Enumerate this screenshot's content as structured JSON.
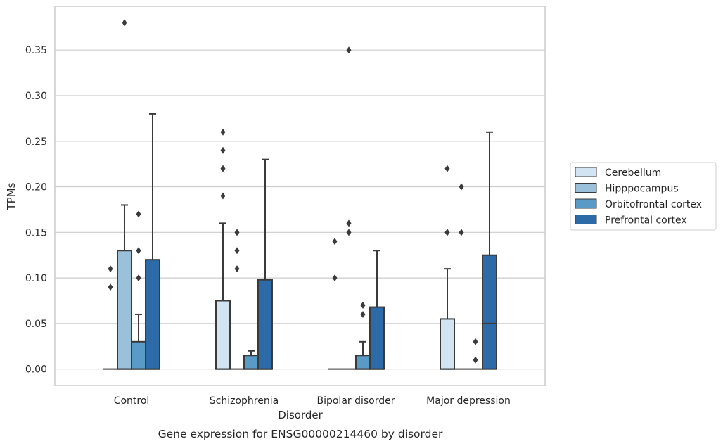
{
  "chart_data": {
    "type": "box",
    "title": "",
    "caption": "Gene expression for ENSG00000214460 by disorder",
    "xlabel": "Disorder",
    "ylabel": "TPMs",
    "ylim": [
      -0.018,
      0.398
    ],
    "yticks": [
      "0.00",
      "0.05",
      "0.10",
      "0.15",
      "0.20",
      "0.25",
      "0.30",
      "0.35"
    ],
    "grid": true,
    "legend_position": "right",
    "categories": [
      "Control",
      "Schizophrenia",
      "Bipolar disorder",
      "Major depression"
    ],
    "series": [
      {
        "name": "Cerebellum",
        "color": "#d2e3f2",
        "boxes": [
          {
            "q1": 0,
            "median": 0,
            "q3": 0,
            "whisker_low": 0,
            "whisker_high": 0,
            "outliers": [
              0.09,
              0.11
            ]
          },
          {
            "q1": 0,
            "median": 0,
            "q3": 0.075,
            "whisker_low": 0,
            "whisker_high": 0.16,
            "outliers": [
              0.19,
              0.22,
              0.24,
              0.26
            ]
          },
          {
            "q1": 0,
            "median": 0,
            "q3": 0,
            "whisker_low": 0,
            "whisker_high": 0,
            "outliers": [
              0.1,
              0.14
            ]
          },
          {
            "q1": 0,
            "median": 0,
            "q3": 0.055,
            "whisker_low": 0,
            "whisker_high": 0.11,
            "outliers": [
              0.15,
              0.15,
              0.22
            ]
          }
        ]
      },
      {
        "name": "Hipppocampus",
        "color": "#9ac0da",
        "boxes": [
          {
            "q1": 0,
            "median": 0,
            "q3": 0.13,
            "whisker_low": 0,
            "whisker_high": 0.18,
            "outliers": [
              0.38
            ]
          },
          {
            "q1": 0,
            "median": 0,
            "q3": 0,
            "whisker_low": 0,
            "whisker_high": 0,
            "outliers": [
              0.11,
              0.13,
              0.15
            ]
          },
          {
            "q1": 0,
            "median": 0,
            "q3": 0,
            "whisker_low": 0,
            "whisker_high": 0,
            "outliers": [
              0.15,
              0.16,
              0.35
            ]
          },
          {
            "q1": 0,
            "median": 0,
            "q3": 0,
            "whisker_low": 0,
            "whisker_high": 0,
            "outliers": [
              0.15,
              0.2
            ]
          }
        ]
      },
      {
        "name": "Orbitofrontal cortex",
        "color": "#5a9ac6",
        "boxes": [
          {
            "q1": 0,
            "median": 0,
            "q3": 0.03,
            "whisker_low": 0,
            "whisker_high": 0.06,
            "outliers": [
              0.1,
              0.13,
              0.17
            ]
          },
          {
            "q1": 0,
            "median": 0,
            "q3": 0.015,
            "whisker_low": 0,
            "whisker_high": 0.02,
            "outliers": []
          },
          {
            "q1": 0,
            "median": 0,
            "q3": 0.015,
            "whisker_low": 0,
            "whisker_high": 0.03,
            "outliers": [
              0.06,
              0.07
            ]
          },
          {
            "q1": 0,
            "median": 0,
            "q3": 0,
            "whisker_low": 0,
            "whisker_high": 0,
            "outliers": [
              0.01,
              0.03
            ]
          }
        ]
      },
      {
        "name": "Prefrontal cortex",
        "color": "#2c6aa8",
        "boxes": [
          {
            "q1": 0,
            "median": 0,
            "q3": 0.12,
            "whisker_low": 0,
            "whisker_high": 0.28,
            "outliers": []
          },
          {
            "q1": 0,
            "median": 0,
            "q3": 0.098,
            "whisker_low": 0,
            "whisker_high": 0.23,
            "outliers": []
          },
          {
            "q1": 0,
            "median": 0,
            "q3": 0.068,
            "whisker_low": 0,
            "whisker_high": 0.13,
            "outliers": []
          },
          {
            "q1": 0,
            "median": 0.05,
            "q3": 0.125,
            "whisker_low": 0,
            "whisker_high": 0.26,
            "outliers": []
          }
        ]
      }
    ]
  }
}
